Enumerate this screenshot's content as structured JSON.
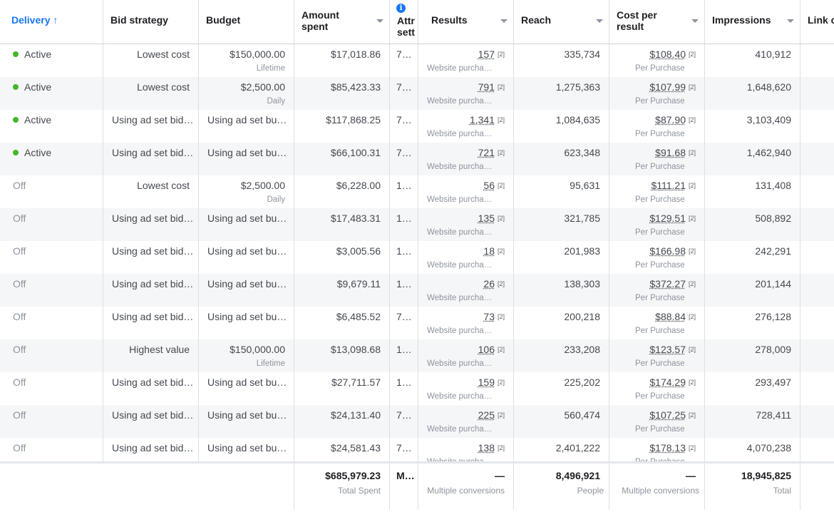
{
  "columns": [
    {
      "label": "Delivery ↑"
    },
    {
      "label": "Bid strategy"
    },
    {
      "label": "Budget"
    },
    {
      "label": "Amount spent"
    },
    {
      "label": "Attr sett"
    },
    {
      "label": "Results"
    },
    {
      "label": "Reach"
    },
    {
      "label": "Cost per result"
    },
    {
      "label": "Impressions"
    },
    {
      "label": "Link c"
    }
  ],
  "header": {
    "delivery": "Delivery ↑",
    "bid_strategy": "Bid strategy",
    "budget": "Budget",
    "amount_spent_1": "Amount",
    "amount_spent_2": "spent",
    "attr_1": "Attr",
    "attr_2": "sett",
    "results": "Results",
    "reach": "Reach",
    "cpr_1": "Cost per",
    "cpr_2": "result",
    "impressions": "Impressions",
    "link": "Link c"
  },
  "rows": [
    {
      "delivery": "Active",
      "active": true,
      "bid": "Lowest cost",
      "budget": "$150,000.00",
      "budget_sub": "Lifetime",
      "spent": "$17,018.86",
      "attr": "7…",
      "results": "157",
      "results_sub": "Website purcha…",
      "reach": "335,734",
      "cpr": "$108.40",
      "cpr_sub": "Per Purchase",
      "impressions": "410,912"
    },
    {
      "delivery": "Active",
      "active": true,
      "bid": "Lowest cost",
      "budget": "$2,500.00",
      "budget_sub": "Daily",
      "spent": "$85,423.33",
      "attr": "7…",
      "results": "791",
      "results_sub": "Website purcha…",
      "reach": "1,275,363",
      "cpr": "$107.99",
      "cpr_sub": "Per Purchase",
      "impressions": "1,648,620"
    },
    {
      "delivery": "Active",
      "active": true,
      "bid": "Using ad set bid…",
      "budget": "Using ad set bu…",
      "budget_sub": "",
      "spent": "$117,868.25",
      "attr": "7…",
      "results": "1,341",
      "results_sub": "Website purcha…",
      "reach": "1,084,635",
      "cpr": "$87.90",
      "cpr_sub": "Per Purchase",
      "impressions": "3,103,409"
    },
    {
      "delivery": "Active",
      "active": true,
      "bid": "Using ad set bid…",
      "budget": "Using ad set bu…",
      "budget_sub": "",
      "spent": "$66,100.31",
      "attr": "7…",
      "results": "721",
      "results_sub": "Website purcha…",
      "reach": "623,348",
      "cpr": "$91.68",
      "cpr_sub": "Per Purchase",
      "impressions": "1,462,940"
    },
    {
      "delivery": "Off",
      "active": false,
      "bid": "Lowest cost",
      "budget": "$2,500.00",
      "budget_sub": "Daily",
      "spent": "$6,228.00",
      "attr": "1…",
      "results": "56",
      "results_sub": "Website purcha…",
      "reach": "95,631",
      "cpr": "$111.21",
      "cpr_sub": "Per Purchase",
      "impressions": "131,408"
    },
    {
      "delivery": "Off",
      "active": false,
      "bid": "Using ad set bid…",
      "budget": "Using ad set bu…",
      "budget_sub": "",
      "spent": "$17,483.31",
      "attr": "1…",
      "results": "135",
      "results_sub": "Website purcha…",
      "reach": "321,785",
      "cpr": "$129.51",
      "cpr_sub": "Per Purchase",
      "impressions": "508,892"
    },
    {
      "delivery": "Off",
      "active": false,
      "bid": "Using ad set bid…",
      "budget": "Using ad set bu…",
      "budget_sub": "",
      "spent": "$3,005.56",
      "attr": "1…",
      "results": "18",
      "results_sub": "Website purcha…",
      "reach": "201,983",
      "cpr": "$166.98",
      "cpr_sub": "Per Purchase",
      "impressions": "242,291"
    },
    {
      "delivery": "Off",
      "active": false,
      "bid": "Using ad set bid…",
      "budget": "Using ad set bu…",
      "budget_sub": "",
      "spent": "$9,679.11",
      "attr": "1…",
      "results": "26",
      "results_sub": "Website purcha…",
      "reach": "138,303",
      "cpr": "$372.27",
      "cpr_sub": "Per Purchase",
      "impressions": "201,144"
    },
    {
      "delivery": "Off",
      "active": false,
      "bid": "Using ad set bid…",
      "budget": "Using ad set bu…",
      "budget_sub": "",
      "spent": "$6,485.52",
      "attr": "7…",
      "results": "73",
      "results_sub": "Website purcha…",
      "reach": "200,218",
      "cpr": "$88.84",
      "cpr_sub": "Per Purchase",
      "impressions": "276,128"
    },
    {
      "delivery": "Off",
      "active": false,
      "bid": "Highest value",
      "budget": "$150,000.00",
      "budget_sub": "Lifetime",
      "spent": "$13,098.68",
      "attr": "1…",
      "results": "106",
      "results_sub": "Website purcha…",
      "reach": "233,208",
      "cpr": "$123.57",
      "cpr_sub": "Per Purchase",
      "impressions": "278,009"
    },
    {
      "delivery": "Off",
      "active": false,
      "bid": "Using ad set bid…",
      "budget": "Using ad set bu…",
      "budget_sub": "",
      "spent": "$27,711.57",
      "attr": "1…",
      "results": "159",
      "results_sub": "Website purcha…",
      "reach": "225,202",
      "cpr": "$174.29",
      "cpr_sub": "Per Purchase",
      "impressions": "293,497"
    },
    {
      "delivery": "Off",
      "active": false,
      "bid": "Using ad set bid…",
      "budget": "Using ad set bu…",
      "budget_sub": "",
      "spent": "$24,131.40",
      "attr": "7…",
      "results": "225",
      "results_sub": "Website purcha…",
      "reach": "560,474",
      "cpr": "$107.25",
      "cpr_sub": "Per Purchase",
      "impressions": "728,411"
    },
    {
      "delivery": "Off",
      "active": false,
      "bid": "Using ad set bid…",
      "budget": "Using ad set bu…",
      "budget_sub": "",
      "spent": "$24,581.43",
      "attr": "7…",
      "results": "138",
      "results_sub": "Website purcha…",
      "reach": "2,401,222",
      "cpr": "$178.13",
      "cpr_sub": "Per Purchase",
      "impressions": "4,070,238"
    }
  ],
  "footnote_marker": "[2]",
  "summary": {
    "spent": "$685,979.23",
    "spent_sub": "Total Spent",
    "attr": "M…",
    "results": "—",
    "results_sub": "Multiple conversions",
    "reach": "8,496,921",
    "reach_sub": "People",
    "cpr": "—",
    "cpr_sub": "Multiple conversions",
    "impressions": "18,945,825",
    "impressions_sub": "Total"
  },
  "colors": {
    "active": "#42b72a",
    "link_blue": "#1877f2",
    "alt_row": "#f5f6f7"
  }
}
